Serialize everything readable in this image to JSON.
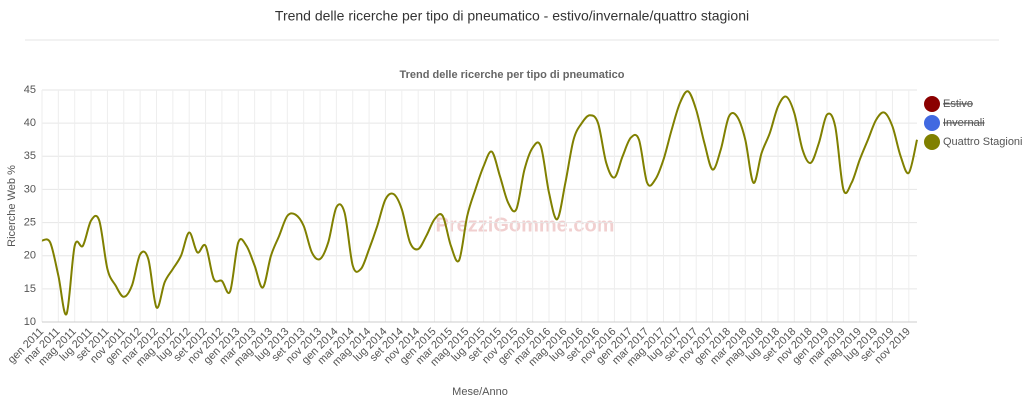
{
  "page_title": "Trend delle ricerche per tipo di pneumatico - estivo/invernale/quattro stagioni",
  "watermark": "PrezziGomme.com",
  "chart_data": {
    "type": "line",
    "title": "Trend delle ricerche per tipo di pneumatico",
    "ylabel": "Ricerche Web %",
    "xlabel": "Mese/Anno",
    "categories": [
      "gen 2011",
      null,
      "mar 2011",
      null,
      "mag 2011",
      null,
      "lug 2011",
      null,
      "set 2011",
      null,
      "nov 2011",
      null,
      "gen 2012",
      null,
      "mar 2012",
      null,
      "mag 2012",
      null,
      "lug 2012",
      null,
      "set 2012",
      null,
      "nov 2012",
      null,
      "gen 2013",
      null,
      "mar 2013",
      null,
      "mag 2013",
      null,
      "lug 2013",
      null,
      "set 2013",
      null,
      "nov 2013",
      null,
      "gen 2014",
      null,
      "mar 2014",
      null,
      "mag 2014",
      null,
      "lug 2014",
      null,
      "set 2014",
      null,
      "nov 2014",
      null,
      "gen 2015",
      null,
      "mar 2015",
      null,
      "mag 2015",
      null,
      "lug 2015",
      null,
      "set 2015",
      null,
      "nov 2015",
      null,
      "gen 2016",
      null,
      "mar 2016",
      null,
      "mag 2016",
      null,
      "lug 2016",
      null,
      "set 2016",
      null,
      "nov 2016",
      null,
      "gen 2017",
      null,
      "mar 2017",
      null,
      "mag 2017",
      null,
      "lug 2017",
      null,
      "set 2017",
      null,
      "nov 2017",
      null,
      "gen 2018",
      null,
      "mar 2018",
      null,
      "mag 2018",
      null,
      "lug 2018",
      null,
      "set 2018",
      null,
      "nov 2018",
      null,
      "gen 2019",
      null,
      "mar 2019",
      null,
      "mag 2019",
      null,
      "lug 2019",
      null,
      "set 2019",
      null,
      "nov 2019",
      null
    ],
    "series": [
      {
        "name": "Estivo",
        "color": "#8b0000",
        "visible": false
      },
      {
        "name": "Invernali",
        "color": "#4169e1",
        "visible": false
      },
      {
        "name": "Quattro Stagioni",
        "color": "#808000",
        "visible": true,
        "values": [
          22.3,
          22,
          17,
          11.2,
          21.5,
          21.5,
          25.3,
          25.3,
          18,
          15.5,
          13.8,
          15.5,
          20.2,
          19.5,
          12.2,
          16,
          18,
          20,
          23.5,
          20.5,
          21.5,
          16.5,
          16.2,
          14.6,
          22,
          21.5,
          18.5,
          15.2,
          20,
          23,
          26,
          26.2,
          24.5,
          20.5,
          19.5,
          22,
          27.3,
          26.5,
          18.5,
          18,
          21,
          24.5,
          28.5,
          29.3,
          27,
          22,
          21,
          23,
          25.5,
          26,
          21.5,
          19.3,
          26,
          30,
          33.5,
          35.7,
          32,
          28,
          27,
          33,
          36.3,
          36.5,
          29.5,
          25.5,
          31,
          37.5,
          40,
          41.2,
          40,
          34,
          31.8,
          35,
          37.8,
          37.5,
          31,
          31.5,
          34.5,
          39,
          43,
          44.8,
          42,
          37,
          33,
          36,
          41,
          41,
          37.5,
          31,
          35.5,
          38.5,
          42.5,
          44,
          41.5,
          36,
          34,
          37,
          41.3,
          39.5,
          30,
          31,
          34.5,
          37.5,
          40.5,
          41.6,
          39.5,
          35,
          32.5,
          37.5
        ]
      }
    ],
    "ylim": [
      10,
      45
    ],
    "yticks": [
      10,
      15,
      20,
      25,
      30,
      35,
      40,
      45
    ],
    "grid": true,
    "legend": "right"
  }
}
